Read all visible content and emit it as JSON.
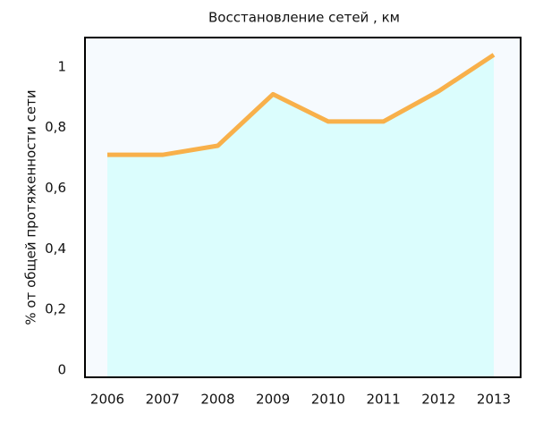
{
  "chart_data": {
    "type": "area",
    "title": "Восстановление сетей ,  км",
    "y_label": "% от общей протяженности сети",
    "categories": [
      "2006",
      "2007",
      "2008",
      "2009",
      "2010",
      "2011",
      "2012",
      "2013"
    ],
    "values": [
      0.71,
      0.71,
      0.74,
      0.91,
      0.82,
      0.82,
      0.92,
      1.04
    ],
    "color": "#f8b04a",
    "fill": "#dbfdfd",
    "ylim": [
      -0.024,
      1.097
    ],
    "yticks": [
      0,
      {
        "value": 0.2,
        "label": "0,2"
      },
      {
        "value": 0.4,
        "label": "0,4"
      },
      {
        "value": 0.6,
        "label": "0,6"
      },
      {
        "value": 0.8,
        "label": "0,8"
      },
      1
    ],
    "grid": false
  }
}
